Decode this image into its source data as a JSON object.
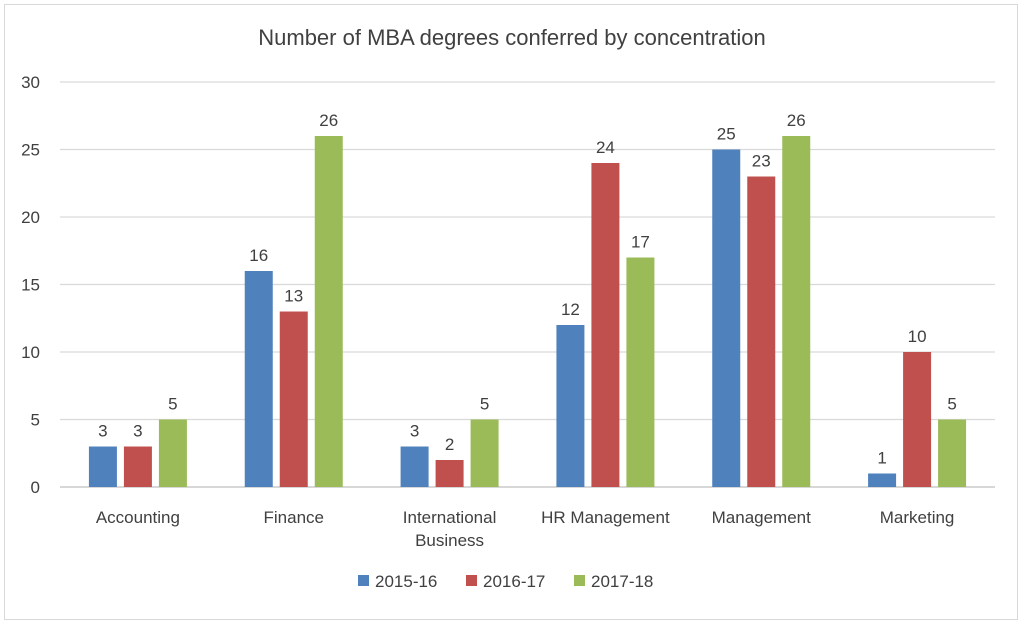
{
  "chart_data": {
    "type": "bar",
    "title": "Number of MBA degrees conferred by concentration",
    "xlabel": "",
    "ylabel": "",
    "ylim": [
      0,
      30
    ],
    "yticks": [
      0,
      5,
      10,
      15,
      20,
      25,
      30
    ],
    "grid": true,
    "legend": "bottom",
    "categories": [
      "Accounting",
      "Finance",
      "International Business",
      "HR Management",
      "Management",
      "Marketing"
    ],
    "category_lines": [
      [
        "Accounting"
      ],
      [
        "Finance"
      ],
      [
        "International",
        "Business"
      ],
      [
        "HR Management"
      ],
      [
        "Management"
      ],
      [
        "Marketing"
      ]
    ],
    "series": [
      {
        "name": "2015-16",
        "color": "#4f81bd",
        "values": [
          3,
          16,
          3,
          12,
          25,
          1
        ]
      },
      {
        "name": "2016-17",
        "color": "#c0504d",
        "values": [
          3,
          13,
          2,
          24,
          23,
          10
        ]
      },
      {
        "name": "2017-18",
        "color": "#9bbb59",
        "values": [
          5,
          26,
          5,
          17,
          26,
          5
        ]
      }
    ]
  }
}
